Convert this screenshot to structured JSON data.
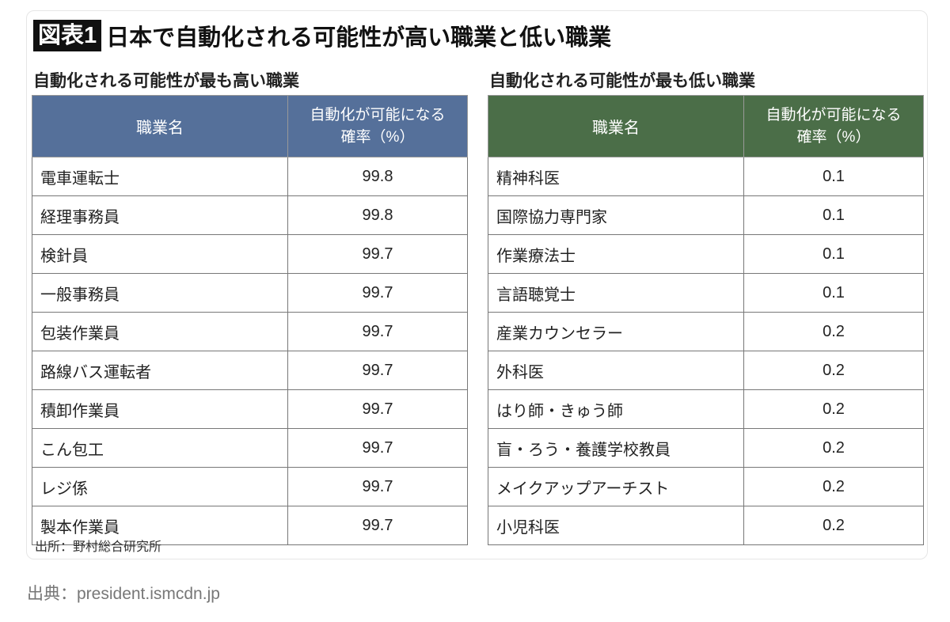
{
  "title": {
    "badge": "図表1",
    "text": "日本で自動化される可能性が高い職業と低い職業"
  },
  "colors": {
    "high_header": "#55709a",
    "low_header": "#4b6e48",
    "badge": "#111111"
  },
  "high_table": {
    "heading": "自動化される可能性が最も高い職業",
    "col1": "職業名",
    "col2_line1": "自動化が可能になる",
    "col2_line2": "確率（%）",
    "rows": [
      {
        "name": "電車運転士",
        "value": "99.8"
      },
      {
        "name": "経理事務員",
        "value": "99.8"
      },
      {
        "name": "検針員",
        "value": "99.7"
      },
      {
        "name": "一般事務員",
        "value": "99.7"
      },
      {
        "name": "包装作業員",
        "value": "99.7"
      },
      {
        "name": "路線バス運転者",
        "value": "99.7"
      },
      {
        "name": "積卸作業員",
        "value": "99.7"
      },
      {
        "name": "こん包工",
        "value": "99.7"
      },
      {
        "name": "レジ係",
        "value": "99.7"
      },
      {
        "name": "製本作業員",
        "value": "99.7"
      }
    ]
  },
  "low_table": {
    "heading": "自動化される可能性が最も低い職業",
    "col1": "職業名",
    "col2_line1": "自動化が可能になる",
    "col2_line2": "確率（%）",
    "rows": [
      {
        "name": "精神科医",
        "value": "0.1"
      },
      {
        "name": "国際協力専門家",
        "value": "0.1"
      },
      {
        "name": "作業療法士",
        "value": "0.1"
      },
      {
        "name": "言語聴覚士",
        "value": "0.1"
      },
      {
        "name": "産業カウンセラー",
        "value": "0.2"
      },
      {
        "name": "外科医",
        "value": "0.2"
      },
      {
        "name": "はり師・きゅう師",
        "value": "0.2"
      },
      {
        "name": "盲・ろう・養護学校教員",
        "value": "0.2"
      },
      {
        "name": "メイクアップアーチスト",
        "value": "0.2"
      },
      {
        "name": "小児科医",
        "value": "0.2"
      }
    ]
  },
  "note": "出所：野村総合研究所",
  "source": "出典：president.ismcdn.jp"
}
